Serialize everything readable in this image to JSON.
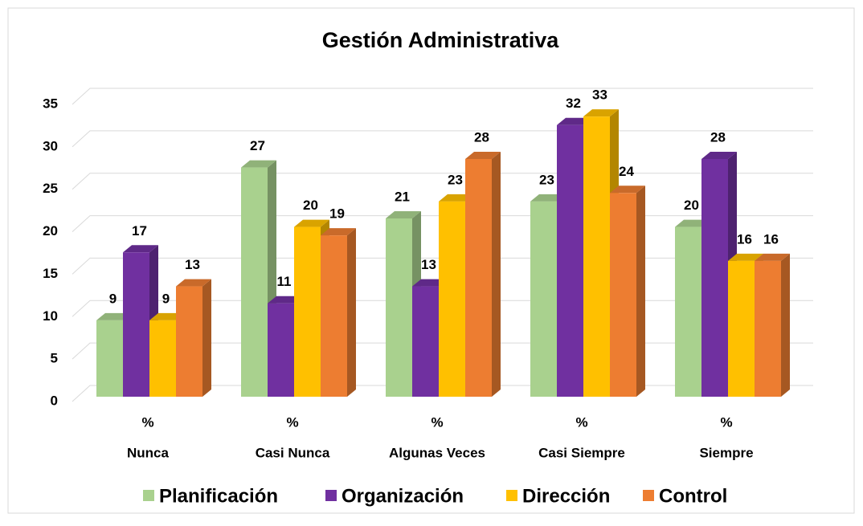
{
  "chart_data": {
    "type": "bar3d",
    "title": "Gestión Administrativa",
    "categories": [
      [
        "%",
        "Nunca"
      ],
      [
        "%",
        "Casi Nunca"
      ],
      [
        "%",
        "Algunas Veces"
      ],
      [
        "%",
        "Casi Siempre"
      ],
      [
        "%",
        "Siempre"
      ]
    ],
    "series": [
      {
        "name": "Planificación",
        "color": "#a9d18e",
        "values": [
          9,
          27,
          21,
          23,
          20
        ]
      },
      {
        "name": "Organización",
        "color": "#7030a0",
        "values": [
          17,
          11,
          13,
          32,
          28
        ]
      },
      {
        "name": "Dirección",
        "color": "#ffc000",
        "values": [
          9,
          20,
          23,
          33,
          16
        ]
      },
      {
        "name": "Control",
        "color": "#ed7d31",
        "values": [
          13,
          19,
          28,
          24,
          16
        ]
      }
    ],
    "ylim": [
      0,
      35
    ],
    "yticks": [
      0,
      5,
      10,
      15,
      20,
      25,
      30,
      35
    ],
    "grid": true,
    "legend": "bottom"
  }
}
